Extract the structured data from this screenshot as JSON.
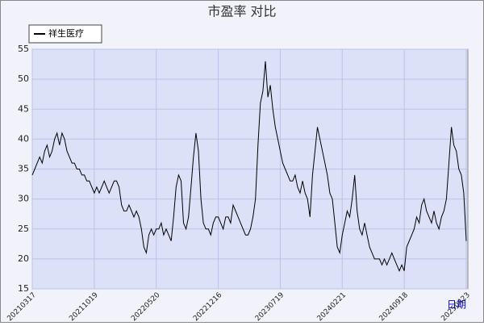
{
  "chart_data": {
    "type": "line",
    "title": "市盈率  对比",
    "x_label": "日期",
    "categories": [
      "20210317",
      null,
      null,
      null,
      null,
      null,
      null,
      null,
      null,
      null,
      null,
      null,
      null,
      null,
      null,
      null,
      null,
      null,
      null,
      null,
      null,
      null,
      null,
      null,
      null,
      "20211019",
      null,
      null,
      null,
      null,
      null,
      null,
      null,
      null,
      null,
      null,
      null,
      null,
      null,
      null,
      null,
      null,
      null,
      null,
      null,
      null,
      null,
      null,
      null,
      null,
      "20220520",
      null,
      null,
      null,
      null,
      null,
      null,
      null,
      null,
      null,
      null,
      null,
      null,
      null,
      null,
      null,
      null,
      null,
      null,
      null,
      null,
      null,
      null,
      null,
      null,
      "20221216",
      null,
      null,
      null,
      null,
      null,
      null,
      null,
      null,
      null,
      null,
      null,
      null,
      null,
      null,
      null,
      null,
      null,
      null,
      null,
      null,
      null,
      null,
      null,
      null,
      "20230719",
      null,
      null,
      null,
      null,
      null,
      null,
      null,
      null,
      null,
      null,
      null,
      null,
      null,
      null,
      null,
      null,
      null,
      null,
      null,
      null,
      null,
      null,
      null,
      null,
      "20240221",
      null,
      null,
      null,
      null,
      null,
      null,
      null,
      null,
      null,
      null,
      null,
      null,
      null,
      null,
      null,
      null,
      null,
      null,
      null,
      null,
      null,
      null,
      null,
      null,
      "20240918",
      null,
      null,
      null,
      null,
      null,
      null,
      null,
      null,
      null,
      null,
      null,
      null,
      null,
      null,
      null,
      null,
      null,
      null,
      null,
      null,
      null,
      null,
      null,
      null,
      "20250423"
    ],
    "series": [
      {
        "name": "祥生医疗",
        "color": "#000000",
        "values": [
          34,
          35,
          36,
          37,
          36,
          38,
          39,
          37,
          38,
          40,
          41,
          39,
          41,
          40,
          38,
          37,
          36,
          36,
          35,
          35,
          34,
          34,
          33,
          33,
          32,
          31,
          32,
          31,
          32,
          33,
          32,
          31,
          32,
          33,
          33,
          32,
          29,
          28,
          28,
          29,
          28,
          27,
          28,
          27,
          25,
          22,
          21,
          24,
          25,
          24,
          25,
          25,
          26,
          24,
          25,
          24,
          23,
          27,
          32,
          34,
          33,
          26,
          25,
          27,
          32,
          37,
          41,
          38,
          30,
          26,
          25,
          25,
          24,
          26,
          27,
          27,
          26,
          25,
          27,
          27,
          26,
          29,
          28,
          27,
          26,
          25,
          24,
          24,
          25,
          27,
          30,
          39,
          46,
          48,
          53,
          47,
          49,
          45,
          42,
          40,
          38,
          36,
          35,
          34,
          33,
          33,
          34,
          32,
          31,
          33,
          31,
          30,
          27,
          34,
          38,
          42,
          40,
          38,
          36,
          34,
          31,
          30,
          26,
          22,
          21,
          24,
          26,
          28,
          27,
          30,
          34,
          28,
          25,
          24,
          26,
          24,
          22,
          21,
          20,
          20,
          20,
          19,
          20,
          19,
          20,
          21,
          20,
          19,
          18,
          19,
          18,
          22,
          23,
          24,
          25,
          27,
          26,
          29,
          30,
          28,
          27,
          26,
          28,
          26,
          25,
          27,
          28,
          30,
          36,
          42,
          39,
          38,
          35,
          34,
          31,
          23
        ]
      }
    ],
    "ylim": [
      15,
      55
    ],
    "yticks": [
      15,
      20,
      25,
      30,
      35,
      40,
      45,
      50,
      55
    ],
    "grid": true,
    "legend": "upper left"
  }
}
